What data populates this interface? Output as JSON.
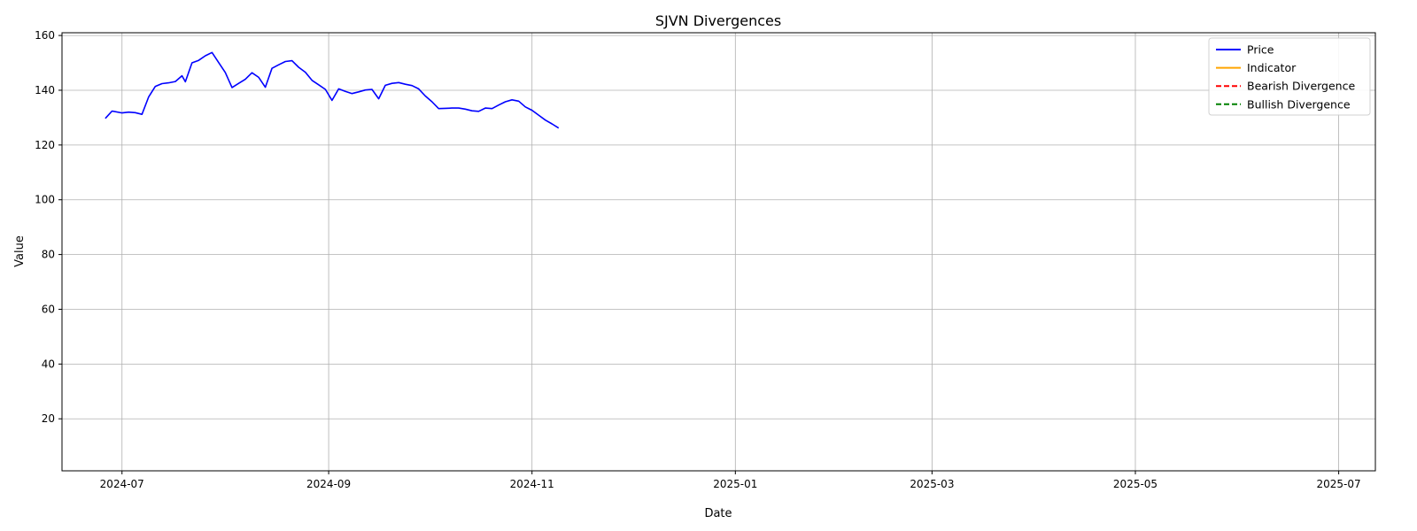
{
  "chart_data": {
    "type": "line",
    "title": "SJVN Divergences",
    "xlabel": "Date",
    "ylabel": "Value",
    "xlim": [
      "2024-06-13",
      "2025-07-12"
    ],
    "ylim": [
      1,
      161
    ],
    "xticks": [
      "2024-07-01",
      "2024-09-01",
      "2024-11-01",
      "2025-01-01",
      "2025-03-01",
      "2025-05-01",
      "2025-07-01"
    ],
    "xtick_labels": [
      "2024-07",
      "2024-09",
      "2024-11",
      "2025-01",
      "2025-03",
      "2025-05",
      "2025-07"
    ],
    "yticks": [
      20,
      40,
      60,
      80,
      100,
      120,
      140,
      160
    ],
    "grid": true,
    "legend_position": "top-right",
    "colors": {
      "price": "#0000ff",
      "indicator": "#ffa500",
      "bearish": "#ff0000",
      "bullish": "#008000",
      "bearish_indicator": "#ff6666",
      "bullish_indicator": "#66b366"
    },
    "legend": [
      {
        "label": "Price",
        "color": "#0000ff",
        "style": "solid"
      },
      {
        "label": "Indicator",
        "color": "#ffa500",
        "style": "solid"
      },
      {
        "label": "Bearish Divergence",
        "color": "#ff0000",
        "style": "dashed"
      },
      {
        "label": "Bullish Divergence",
        "color": "#008000",
        "style": "dashed"
      }
    ],
    "series": [
      {
        "name": "Price",
        "points": [
          [
            "2024-06-26",
            129.7
          ],
          [
            "2024-06-28",
            132.4
          ],
          [
            "2024-07-01",
            131.7
          ],
          [
            "2024-07-03",
            132.0
          ],
          [
            "2024-07-05",
            131.8
          ],
          [
            "2024-07-07",
            131.2
          ],
          [
            "2024-07-09",
            137.6
          ],
          [
            "2024-07-11",
            141.4
          ],
          [
            "2024-07-13",
            142.4
          ],
          [
            "2024-07-15",
            142.7
          ],
          [
            "2024-07-17",
            143.2
          ],
          [
            "2024-07-19",
            145.3
          ],
          [
            "2024-07-20",
            143.1
          ],
          [
            "2024-07-22",
            150.0
          ],
          [
            "2024-07-24",
            150.9
          ],
          [
            "2024-07-26",
            152.6
          ],
          [
            "2024-07-28",
            153.8
          ],
          [
            "2024-07-30",
            150.1
          ],
          [
            "2024-08-01",
            146.5
          ],
          [
            "2024-08-03",
            141.0
          ],
          [
            "2024-08-05",
            142.5
          ],
          [
            "2024-08-07",
            144.0
          ],
          [
            "2024-08-09",
            146.4
          ],
          [
            "2024-08-11",
            144.7
          ],
          [
            "2024-08-13",
            141.1
          ],
          [
            "2024-08-15",
            148.0
          ],
          [
            "2024-08-17",
            149.3
          ],
          [
            "2024-08-19",
            150.5
          ],
          [
            "2024-08-21",
            150.8
          ],
          [
            "2024-08-23",
            148.4
          ],
          [
            "2024-08-25",
            146.6
          ],
          [
            "2024-08-27",
            143.6
          ],
          [
            "2024-08-29",
            142.0
          ],
          [
            "2024-08-31",
            140.3
          ],
          [
            "2024-09-02",
            136.3
          ],
          [
            "2024-09-04",
            140.5
          ],
          [
            "2024-09-06",
            139.6
          ],
          [
            "2024-09-08",
            138.8
          ],
          [
            "2024-09-10",
            139.4
          ],
          [
            "2024-09-12",
            140.1
          ],
          [
            "2024-09-14",
            140.3
          ],
          [
            "2024-09-16",
            136.9
          ],
          [
            "2024-09-18",
            141.8
          ],
          [
            "2024-09-20",
            142.5
          ],
          [
            "2024-09-22",
            142.8
          ],
          [
            "2024-09-24",
            142.2
          ],
          [
            "2024-09-26",
            141.7
          ],
          [
            "2024-09-28",
            140.5
          ],
          [
            "2024-09-30",
            137.9
          ],
          [
            "2024-10-02",
            135.8
          ],
          [
            "2024-10-04",
            133.3
          ],
          [
            "2024-10-06",
            133.4
          ],
          [
            "2024-10-08",
            133.5
          ],
          [
            "2024-10-10",
            133.5
          ],
          [
            "2024-10-12",
            133.1
          ],
          [
            "2024-10-14",
            132.5
          ],
          [
            "2024-10-16",
            132.3
          ],
          [
            "2024-10-18",
            133.5
          ],
          [
            "2024-10-20",
            133.3
          ],
          [
            "2024-10-22",
            134.6
          ],
          [
            "2024-10-24",
            135.8
          ],
          [
            "2024-10-26",
            136.5
          ],
          [
            "2024-10-28",
            136.0
          ],
          [
            "2024-10-30",
            133.9
          ],
          [
            "2024-11-01",
            132.7
          ],
          [
            "2024-11-03",
            130.9
          ],
          [
            "2024-11-05",
            129.1
          ],
          [
            "2024-11-07",
            127.7
          ],
          [
            "2024-11-09",
            126.2
          ]
        ]
      }
    ]
  }
}
